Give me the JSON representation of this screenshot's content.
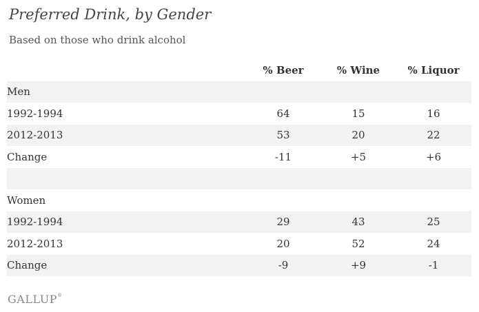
{
  "title": "Preferred Drink, by Gender",
  "subtitle": "Based on those who drink alcohol",
  "columns": [
    "% Beer",
    "% Wine",
    "% Liquor"
  ],
  "groups": [
    {
      "name": "Men",
      "rows": [
        {
          "label": "1992-1994",
          "values": [
            "64",
            "15",
            "16"
          ]
        },
        {
          "label": "2012-2013",
          "values": [
            "53",
            "20",
            "22"
          ]
        },
        {
          "label": "Change",
          "values": [
            "-11",
            "+5",
            "+6"
          ]
        }
      ]
    },
    {
      "name": "Women",
      "rows": [
        {
          "label": "1992-1994",
          "values": [
            "29",
            "43",
            "25"
          ]
        },
        {
          "label": "2012-2013",
          "values": [
            "20",
            "52",
            "24"
          ]
        },
        {
          "label": "Change",
          "values": [
            "-9",
            "+9",
            "-1"
          ]
        }
      ]
    }
  ],
  "source": "GALLUP",
  "source_mark": "®",
  "chart_data": {
    "type": "table",
    "title": "Preferred Drink, by Gender",
    "subtitle": "Based on those who drink alcohol",
    "columns": [
      "% Beer",
      "% Wine",
      "% Liquor"
    ],
    "rows": [
      {
        "group": "Men",
        "label": "1992-1994",
        "values": [
          64,
          15,
          16
        ]
      },
      {
        "group": "Men",
        "label": "2012-2013",
        "values": [
          53,
          20,
          22
        ]
      },
      {
        "group": "Men",
        "label": "Change",
        "values": [
          -11,
          5,
          6
        ]
      },
      {
        "group": "Women",
        "label": "1992-1994",
        "values": [
          29,
          43,
          25
        ]
      },
      {
        "group": "Women",
        "label": "2012-2013",
        "values": [
          20,
          52,
          24
        ]
      },
      {
        "group": "Women",
        "label": "Change",
        "values": [
          -9,
          9,
          -1
        ]
      }
    ],
    "shaded_rows": [
      "group-header",
      "1992-1994",
      "Change",
      "spacer"
    ]
  },
  "colors": {
    "row_shade": "#f2f2f2",
    "text": "#333333",
    "logo": "#888888"
  }
}
